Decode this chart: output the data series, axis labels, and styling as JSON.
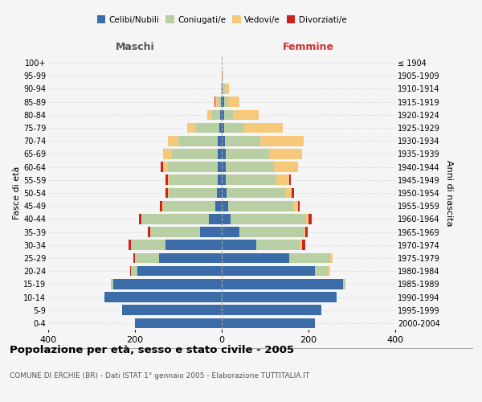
{
  "age_groups": [
    "0-4",
    "5-9",
    "10-14",
    "15-19",
    "20-24",
    "25-29",
    "30-34",
    "35-39",
    "40-44",
    "45-49",
    "50-54",
    "55-59",
    "60-64",
    "65-69",
    "70-74",
    "75-79",
    "80-84",
    "85-89",
    "90-94",
    "95-99",
    "100+"
  ],
  "birth_years": [
    "2000-2004",
    "1995-1999",
    "1990-1994",
    "1985-1989",
    "1980-1984",
    "1975-1979",
    "1970-1974",
    "1965-1969",
    "1960-1964",
    "1955-1959",
    "1950-1954",
    "1945-1949",
    "1940-1944",
    "1935-1939",
    "1930-1934",
    "1925-1929",
    "1920-1924",
    "1915-1919",
    "1910-1914",
    "1905-1909",
    "≤ 1904"
  ],
  "male": {
    "celibi": [
      200,
      230,
      270,
      250,
      195,
      145,
      130,
      50,
      30,
      15,
      12,
      10,
      10,
      10,
      10,
      5,
      3,
      2,
      0,
      0,
      0
    ],
    "coniugati": [
      0,
      0,
      0,
      5,
      15,
      55,
      80,
      115,
      155,
      120,
      110,
      110,
      115,
      105,
      90,
      55,
      20,
      8,
      2,
      0,
      0
    ],
    "vedovi": [
      0,
      0,
      0,
      0,
      0,
      0,
      0,
      0,
      0,
      2,
      2,
      5,
      10,
      20,
      25,
      20,
      10,
      5,
      0,
      0,
      0
    ],
    "divorziati": [
      0,
      0,
      0,
      0,
      2,
      3,
      5,
      5,
      5,
      5,
      5,
      5,
      5,
      0,
      0,
      0,
      0,
      2,
      0,
      0,
      0
    ]
  },
  "female": {
    "nubili": [
      215,
      230,
      265,
      280,
      215,
      155,
      80,
      40,
      20,
      15,
      12,
      10,
      10,
      10,
      8,
      5,
      5,
      5,
      2,
      0,
      0
    ],
    "coniugate": [
      0,
      0,
      0,
      5,
      30,
      95,
      100,
      150,
      175,
      150,
      135,
      115,
      110,
      100,
      80,
      45,
      20,
      10,
      5,
      2,
      0
    ],
    "vedove": [
      0,
      0,
      0,
      0,
      5,
      5,
      5,
      3,
      5,
      10,
      15,
      30,
      55,
      75,
      100,
      90,
      60,
      25,
      10,
      2,
      0
    ],
    "divorziate": [
      0,
      0,
      0,
      0,
      0,
      0,
      8,
      5,
      8,
      5,
      5,
      5,
      0,
      0,
      0,
      0,
      0,
      0,
      0,
      0,
      0
    ]
  },
  "colors": {
    "celibi_nubili": "#3b6ca8",
    "coniugati": "#b8cfa3",
    "vedovi": "#f5c87a",
    "divorziati": "#cc2222"
  },
  "xlim": 400,
  "title": "Popolazione per età, sesso e stato civile - 2005",
  "subtitle": "COMUNE DI ERCHIE (BR) - Dati ISTAT 1° gennaio 2005 - Elaborazione TUTTITALIA.IT",
  "ylabel_left": "Fasce di età",
  "ylabel_right": "Anni di nascita",
  "xlabel_left": "Maschi",
  "xlabel_right": "Femmine",
  "legend_labels": [
    "Celibi/Nubili",
    "Coniugati/e",
    "Vedovi/e",
    "Divorziati/e"
  ],
  "background_color": "#f5f5f5",
  "grid_color": "#cccccc"
}
